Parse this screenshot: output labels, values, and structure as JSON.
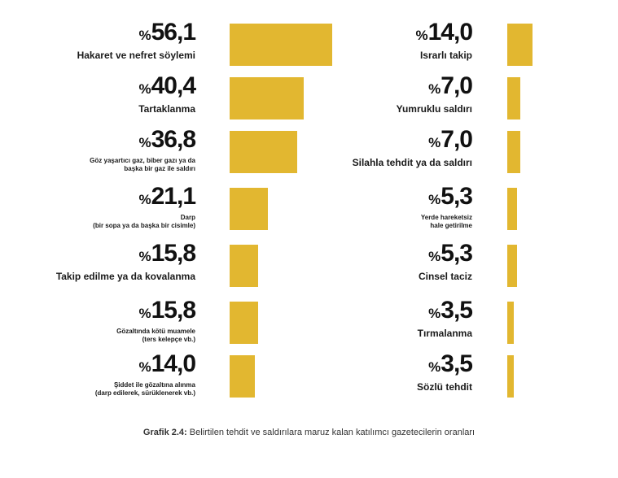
{
  "chart_data": {
    "type": "bar",
    "title": "Grafik 2.4: Belirtilen tehdit ve saldırılara maruz kalan katılımcı gazetecilerin oranları",
    "value_prefix": "%",
    "bar_color": "#e2b730",
    "columns": [
      {
        "items": [
          {
            "value": 56.1,
            "display": "56,1",
            "label": "Hakaret ve nefret söylemi",
            "size": "big"
          },
          {
            "value": 40.4,
            "display": "40,4",
            "label": "Tartaklanma",
            "size": "big"
          },
          {
            "value": 36.8,
            "display": "36,8",
            "label": "Göz yaşartıcı gaz, biber gazı ya da\nbaşka bir gaz ile saldırı",
            "size": "small"
          },
          {
            "value": 21.1,
            "display": "21,1",
            "label": "Darp\n(bir sopa ya da başka bir cisimle)",
            "size": "small"
          },
          {
            "value": 15.8,
            "display": "15,8",
            "label": "Takip edilme ya da kovalanma",
            "size": "big"
          },
          {
            "value": 15.8,
            "display": "15,8",
            "label": "Gözaltında kötü muamele\n(ters kelepçe vb.)",
            "size": "small"
          },
          {
            "value": 14.0,
            "display": "14,0",
            "label": "Şiddet ile gözaltına alınma\n(darp edilerek, sürüklenerek vb.)",
            "size": "small"
          }
        ]
      },
      {
        "items": [
          {
            "value": 14.0,
            "display": "14,0",
            "label": "Israrlı takip",
            "size": "big"
          },
          {
            "value": 7.0,
            "display": "7,0",
            "label": "Yumruklu saldırı",
            "size": "big"
          },
          {
            "value": 7.0,
            "display": "7,0",
            "label": "Silahla tehdit ya da saldırı",
            "size": "big"
          },
          {
            "value": 5.3,
            "display": "5,3",
            "label": "Yerde hareketsiz\nhale getirilme",
            "size": "small"
          },
          {
            "value": 5.3,
            "display": "5,3",
            "label": "Cinsel taciz",
            "size": "big"
          },
          {
            "value": 3.5,
            "display": "3,5",
            "label": "Tırmalanma",
            "size": "big"
          },
          {
            "value": 3.5,
            "display": "3,5",
            "label": "Sözlü tehdit",
            "size": "big"
          }
        ]
      }
    ]
  },
  "caption": {
    "prefix": "Grafik 2.4:",
    "text": " Belirtilen tehdit ve saldırılara maruz kalan katılımcı gazetecilerin oranları"
  }
}
